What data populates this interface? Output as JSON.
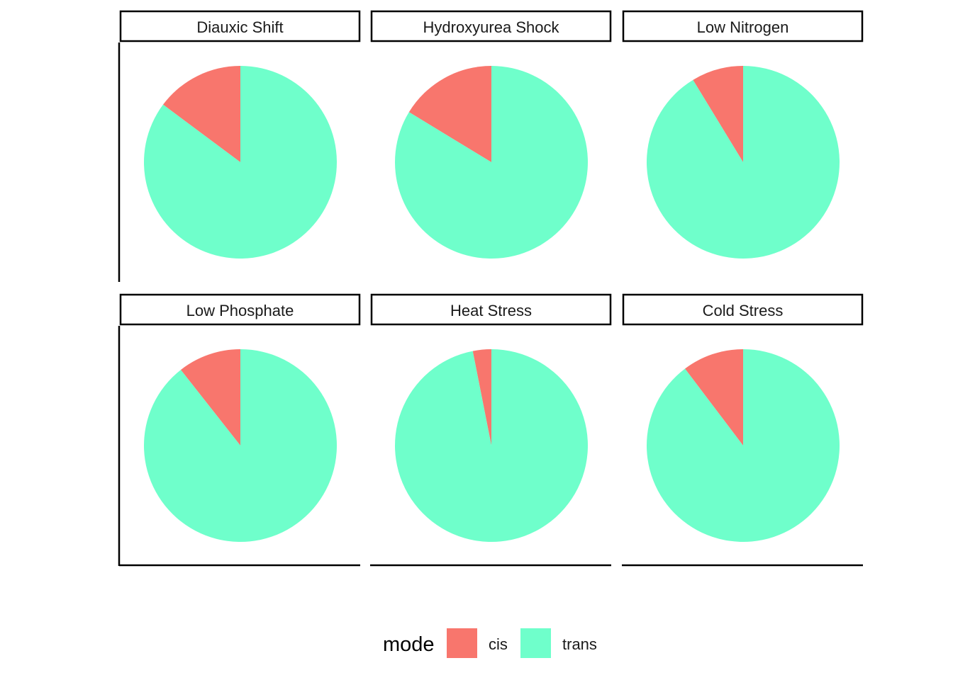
{
  "chart_data": {
    "type": "pie",
    "facet_by": "condition",
    "legend": {
      "title": "mode",
      "position": "bottom",
      "items": [
        {
          "label": "cis",
          "color": "#F8766D"
        },
        {
          "label": "trans",
          "color": "#6FFFCB"
        }
      ]
    },
    "panels": [
      {
        "title": "Diauxic Shift",
        "slices": [
          {
            "mode": "cis",
            "fraction": 0.148
          },
          {
            "mode": "trans",
            "fraction": 0.852
          }
        ]
      },
      {
        "title": "Hydroxyurea Shock",
        "slices": [
          {
            "mode": "cis",
            "fraction": 0.163
          },
          {
            "mode": "trans",
            "fraction": 0.837
          }
        ]
      },
      {
        "title": "Low Nitrogen",
        "slices": [
          {
            "mode": "cis",
            "fraction": 0.087
          },
          {
            "mode": "trans",
            "fraction": 0.913
          }
        ]
      },
      {
        "title": "Low Phosphate",
        "slices": [
          {
            "mode": "cis",
            "fraction": 0.106
          },
          {
            "mode": "trans",
            "fraction": 0.894
          }
        ]
      },
      {
        "title": "Heat Stress",
        "slices": [
          {
            "mode": "cis",
            "fraction": 0.031
          },
          {
            "mode": "trans",
            "fraction": 0.969
          }
        ]
      },
      {
        "title": "Cold Stress",
        "slices": [
          {
            "mode": "cis",
            "fraction": 0.103
          },
          {
            "mode": "trans",
            "fraction": 0.897
          }
        ]
      }
    ]
  }
}
